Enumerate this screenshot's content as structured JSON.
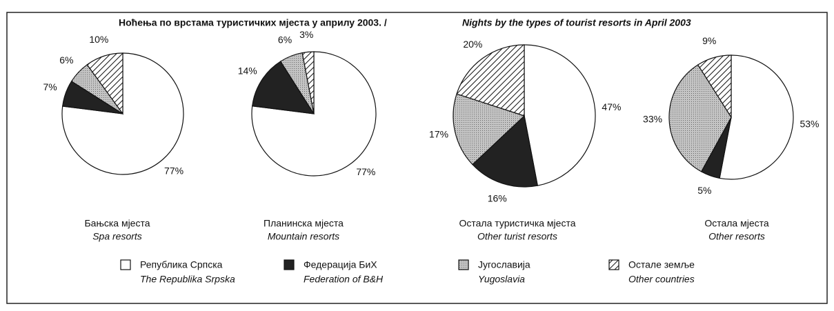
{
  "title": [
    "Ноћења по врстама туристичких мјеста у априлу 2003.  /",
    "Nights by the types of tourist resorts in April 2003"
  ],
  "legend": [
    {
      "name": "Република Српска",
      "name_en": "The Republika Srpska",
      "color": "#ffffff",
      "pattern": "none"
    },
    {
      "name": "Федерација БиХ",
      "name_en": "Federation of B&H",
      "color": "#222222",
      "pattern": "none"
    },
    {
      "name": "Југославија",
      "name_en": "Yugoslavia",
      "color": "#bdbdbd",
      "pattern": "dots"
    },
    {
      "name": "Остале земље",
      "name_en": "Other countries",
      "color": "#ffffff",
      "pattern": "hatch"
    }
  ],
  "chart_data": [
    {
      "type": "pie",
      "title": "Бањска мјеста",
      "subtitle": "Spa resorts",
      "values": [
        77,
        7,
        6,
        10
      ],
      "value_labels": [
        "77%",
        "7%",
        "6%",
        "10%"
      ]
    },
    {
      "type": "pie",
      "title": "Планинска мјеста",
      "subtitle": "Mountain resorts",
      "values": [
        77,
        14,
        6,
        3
      ],
      "value_labels": [
        "77%",
        "14%",
        "6%",
        "3%"
      ]
    },
    {
      "type": "pie",
      "title": "Остала туристичка мјеста",
      "subtitle": "Other turist resorts",
      "values": [
        47,
        16,
        17,
        20
      ],
      "value_labels": [
        "47%",
        "16%",
        "17%",
        "20%"
      ]
    },
    {
      "type": "pie",
      "title": "Остала мјеста",
      "subtitle": "Other resorts",
      "values": [
        53,
        5,
        33,
        9
      ],
      "value_labels": [
        "53%",
        "5%",
        "33%",
        "9%"
      ]
    }
  ]
}
